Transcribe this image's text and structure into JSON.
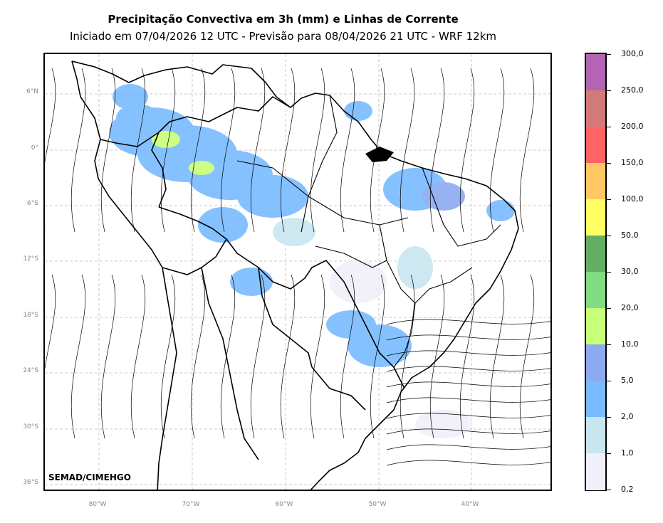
{
  "title": {
    "line1": "Precipitação Convectiva em 3h (mm) e Linhas de Corrente",
    "line2": "Iniciado em 07/04/2026 12 UTC - Previsão para 08/04/2026 21 UTC - WRF 12km"
  },
  "credit": "SEMAD/CIMEHGO",
  "lat_labels": [
    "6°N",
    "0°",
    "6°S",
    "12°S",
    "18°S",
    "24°S",
    "30°S",
    "36°S"
  ],
  "lon_labels": [
    "80°W",
    "70°W",
    "60°W",
    "50°W",
    "40°W"
  ],
  "colorbar": {
    "labels": [
      "300,0",
      "250,0",
      "200,0",
      "150,0",
      "100,0",
      "50,0",
      "30,0",
      "20,0",
      "10,0",
      "5,0",
      "2,0",
      "1,0",
      "0,2"
    ],
    "colors": [
      "#b464b4",
      "#d27a78",
      "#ff6464",
      "#ffc864",
      "#ffff64",
      "#64ae64",
      "#82dc82",
      "#c8ff78",
      "#8caaf0",
      "#78bbff",
      "#c8e6f0",
      "#f0f0fa"
    ]
  }
}
